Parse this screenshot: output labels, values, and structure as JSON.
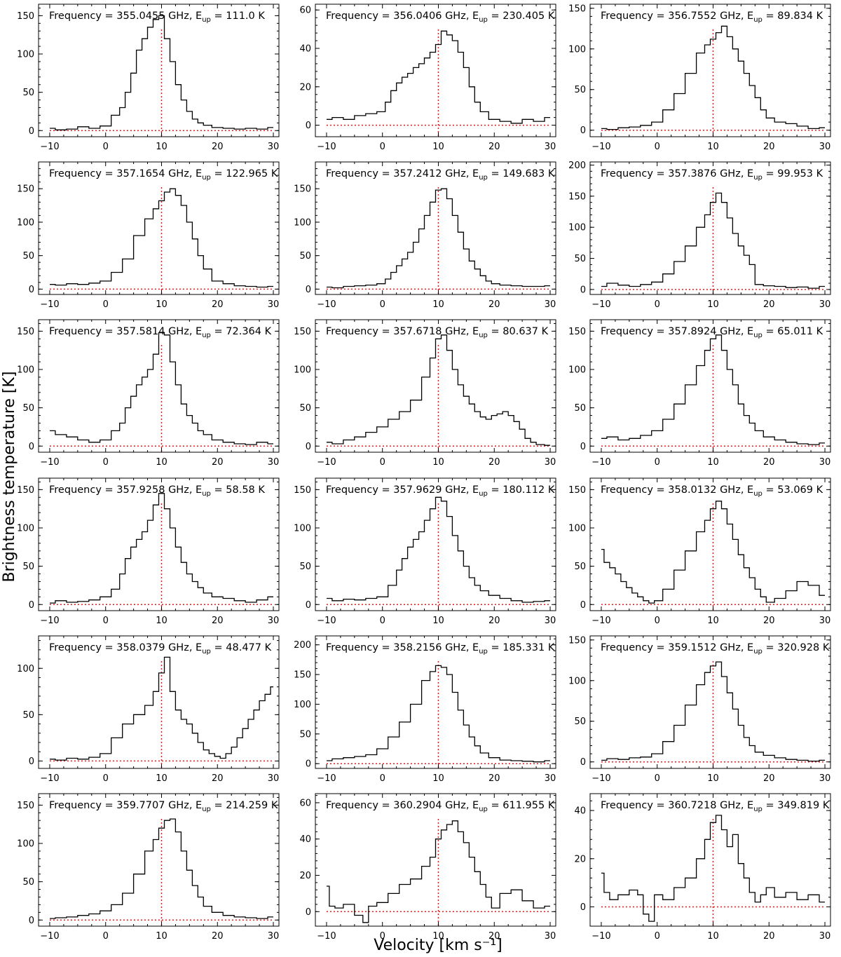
{
  "figure": {
    "xlabel": "Velocity [km s⁻¹]",
    "ylabel": "Brightness temperature [K]",
    "title_prefix": "Frequency = ",
    "title_freq_unit": " GHz, E",
    "title_sub": "up",
    "title_energy_prefix": " = ",
    "title_energy_unit": " K"
  },
  "colors": {
    "spectrum": "#000000",
    "reference": "#e31a1c",
    "frame": "#000000"
  },
  "chart_data": [
    {
      "type": "line",
      "frequency": "355.0455",
      "eup": "111.0",
      "v_sys": 10,
      "xlim": [
        -12,
        31
      ],
      "ylim": [
        -8,
        165
      ],
      "yticks": [
        0,
        50,
        100,
        150
      ],
      "xticks": [
        -10,
        0,
        10,
        20,
        30
      ],
      "x": [
        -10,
        -8,
        -6,
        -4,
        -2,
        0,
        2,
        3,
        4,
        5,
        6,
        7,
        8,
        9,
        10,
        11,
        12,
        13,
        14,
        15,
        16,
        17,
        18,
        20,
        22,
        24,
        26,
        28,
        30
      ],
      "y": [
        3,
        1,
        2,
        5,
        3,
        6,
        20,
        30,
        50,
        75,
        105,
        120,
        135,
        145,
        150,
        120,
        90,
        60,
        40,
        25,
        15,
        10,
        7,
        4,
        3,
        2,
        3,
        2,
        4
      ]
    },
    {
      "type": "line",
      "frequency": "356.0406",
      "eup": "230.405",
      "v_sys": 10,
      "xlim": [
        -12,
        31
      ],
      "ylim": [
        -6,
        63
      ],
      "yticks": [
        0,
        20,
        40,
        60
      ],
      "xticks": [
        -10,
        0,
        10,
        20,
        30
      ],
      "x": [
        -10,
        -8,
        -6,
        -4,
        -2,
        0,
        1,
        2,
        3,
        4,
        5,
        6,
        7,
        8,
        9,
        10,
        11,
        12,
        13,
        14,
        15,
        16,
        17,
        18,
        20,
        22,
        24,
        26,
        28,
        30
      ],
      "y": [
        3,
        4,
        3,
        5,
        6,
        7,
        12,
        18,
        22,
        25,
        27,
        30,
        32,
        35,
        38,
        42,
        49,
        47,
        44,
        38,
        30,
        20,
        12,
        7,
        3,
        2,
        1,
        3,
        2,
        4
      ]
    },
    {
      "type": "line",
      "frequency": "356.7552",
      "eup": "89.834",
      "v_sys": 10,
      "xlim": [
        -12,
        31
      ],
      "ylim": [
        -8,
        155
      ],
      "yticks": [
        0,
        50,
        100,
        150
      ],
      "xticks": [
        -10,
        0,
        10,
        20,
        30
      ],
      "x": [
        -10,
        -8,
        -6,
        -4,
        -2,
        0,
        2,
        4,
        6,
        8,
        9,
        10,
        11,
        12,
        13,
        14,
        15,
        16,
        17,
        18,
        19,
        20,
        22,
        24,
        26,
        28,
        30
      ],
      "y": [
        2,
        1,
        3,
        4,
        6,
        10,
        25,
        45,
        70,
        95,
        105,
        112,
        120,
        128,
        115,
        100,
        85,
        70,
        55,
        40,
        25,
        15,
        10,
        8,
        5,
        2,
        3
      ]
    },
    {
      "type": "line",
      "frequency": "357.1654",
      "eup": "122.965",
      "v_sys": 10,
      "xlim": [
        -12,
        31
      ],
      "ylim": [
        -8,
        190
      ],
      "yticks": [
        0,
        50,
        100,
        150
      ],
      "xticks": [
        -10,
        0,
        10,
        20,
        30
      ],
      "x": [
        -10,
        -8,
        -6,
        -4,
        -2,
        0,
        2,
        4,
        6,
        8,
        9,
        10,
        11,
        12,
        13,
        14,
        15,
        16,
        17,
        18,
        20,
        22,
        24,
        26,
        28,
        30
      ],
      "y": [
        7,
        6,
        8,
        7,
        9,
        12,
        25,
        45,
        80,
        105,
        120,
        132,
        145,
        150,
        140,
        125,
        100,
        75,
        50,
        30,
        12,
        8,
        5,
        4,
        3,
        4
      ]
    },
    {
      "type": "line",
      "frequency": "357.2412",
      "eup": "149.683",
      "v_sys": 10,
      "xlim": [
        -12,
        31
      ],
      "ylim": [
        -8,
        190
      ],
      "yticks": [
        0,
        50,
        100,
        150
      ],
      "xticks": [
        -10,
        0,
        10,
        20,
        30
      ],
      "x": [
        -10,
        -8,
        -6,
        -4,
        -2,
        0,
        1,
        2,
        3,
        4,
        5,
        6,
        7,
        8,
        9,
        10,
        11,
        12,
        13,
        14,
        15,
        16,
        17,
        18,
        19,
        20,
        22,
        24,
        26,
        28,
        30
      ],
      "y": [
        3,
        2,
        4,
        5,
        6,
        8,
        15,
        25,
        35,
        45,
        55,
        70,
        90,
        110,
        130,
        148,
        150,
        135,
        110,
        85,
        60,
        42,
        30,
        20,
        12,
        8,
        6,
        5,
        4,
        4,
        5
      ]
    },
    {
      "type": "line",
      "frequency": "357.3876",
      "eup": "99.953",
      "v_sys": 10,
      "xlim": [
        -12,
        31
      ],
      "ylim": [
        -8,
        205
      ],
      "yticks": [
        0,
        50,
        100,
        150,
        200
      ],
      "xticks": [
        -10,
        0,
        10,
        20,
        30
      ],
      "x": [
        -10,
        -8,
        -6,
        -4,
        -2,
        0,
        2,
        4,
        6,
        8,
        9,
        10,
        11,
        12,
        13,
        14,
        15,
        16,
        17,
        18,
        20,
        22,
        24,
        26,
        28,
        30
      ],
      "y": [
        5,
        10,
        7,
        5,
        8,
        12,
        25,
        45,
        70,
        100,
        120,
        140,
        155,
        140,
        115,
        90,
        70,
        55,
        40,
        8,
        6,
        5,
        3,
        4,
        2,
        5
      ]
    },
    {
      "type": "line",
      "frequency": "357.5814",
      "eup": "72.364",
      "v_sys": 10,
      "xlim": [
        -12,
        31
      ],
      "ylim": [
        -8,
        165
      ],
      "yticks": [
        0,
        50,
        100,
        150
      ],
      "xticks": [
        -10,
        0,
        10,
        20,
        30
      ],
      "x": [
        -10,
        -8,
        -6,
        -4,
        -2,
        0,
        2,
        3,
        4,
        5,
        6,
        7,
        8,
        9,
        10,
        11,
        12,
        13,
        14,
        15,
        16,
        17,
        18,
        20,
        22,
        24,
        26,
        28,
        30
      ],
      "y": [
        20,
        15,
        12,
        8,
        5,
        8,
        20,
        30,
        50,
        65,
        80,
        90,
        100,
        120,
        148,
        145,
        110,
        80,
        55,
        40,
        30,
        20,
        15,
        8,
        5,
        3,
        2,
        5,
        3
      ]
    },
    {
      "type": "line",
      "frequency": "357.6718",
      "eup": "80.637",
      "v_sys": 10,
      "xlim": [
        -12,
        31
      ],
      "ylim": [
        -8,
        165
      ],
      "yticks": [
        0,
        50,
        100,
        150
      ],
      "xticks": [
        -10,
        0,
        10,
        20,
        30
      ],
      "x": [
        -10,
        -8,
        -6,
        -4,
        -2,
        0,
        2,
        4,
        6,
        8,
        9,
        10,
        11,
        12,
        13,
        14,
        15,
        16,
        17,
        18,
        19,
        20,
        21,
        22,
        23,
        24,
        25,
        26,
        27,
        28,
        30
      ],
      "y": [
        5,
        3,
        8,
        12,
        18,
        25,
        35,
        45,
        60,
        90,
        115,
        140,
        145,
        125,
        100,
        80,
        65,
        55,
        45,
        38,
        35,
        40,
        42,
        45,
        40,
        32,
        22,
        10,
        5,
        2,
        1
      ]
    },
    {
      "type": "line",
      "frequency": "357.8924",
      "eup": "65.011",
      "v_sys": 10,
      "xlim": [
        -12,
        31
      ],
      "ylim": [
        -8,
        165
      ],
      "yticks": [
        0,
        50,
        100,
        150
      ],
      "xticks": [
        -10,
        0,
        10,
        20,
        30
      ],
      "x": [
        -10,
        -8,
        -6,
        -4,
        -2,
        0,
        2,
        4,
        6,
        8,
        9,
        10,
        11,
        12,
        13,
        14,
        15,
        16,
        17,
        18,
        20,
        22,
        24,
        26,
        28,
        30
      ],
      "y": [
        10,
        12,
        8,
        10,
        14,
        20,
        35,
        55,
        80,
        105,
        125,
        140,
        145,
        125,
        100,
        80,
        55,
        40,
        30,
        20,
        12,
        8,
        5,
        3,
        2,
        4
      ]
    },
    {
      "type": "line",
      "frequency": "357.9258",
      "eup": "58.58",
      "v_sys": 10,
      "xlim": [
        -12,
        31
      ],
      "ylim": [
        -8,
        165
      ],
      "yticks": [
        0,
        50,
        100,
        150
      ],
      "xticks": [
        -10,
        0,
        10,
        20,
        30
      ],
      "x": [
        -10,
        -8,
        -6,
        -4,
        -2,
        0,
        2,
        3,
        4,
        5,
        6,
        7,
        8,
        9,
        10,
        11,
        12,
        13,
        14,
        15,
        16,
        17,
        18,
        20,
        22,
        24,
        26,
        28,
        30
      ],
      "y": [
        2,
        5,
        3,
        4,
        6,
        10,
        20,
        40,
        60,
        75,
        85,
        95,
        110,
        130,
        145,
        125,
        100,
        75,
        55,
        40,
        30,
        22,
        15,
        10,
        8,
        5,
        3,
        6,
        10
      ]
    },
    {
      "type": "line",
      "frequency": "357.9629",
      "eup": "180.112",
      "v_sys": 10,
      "xlim": [
        -12,
        31
      ],
      "ylim": [
        -8,
        165
      ],
      "yticks": [
        0,
        50,
        100,
        150
      ],
      "xticks": [
        -10,
        0,
        10,
        20,
        30
      ],
      "x": [
        -10,
        -8,
        -6,
        -4,
        -2,
        0,
        2,
        3,
        4,
        5,
        6,
        7,
        8,
        9,
        10,
        11,
        12,
        13,
        14,
        15,
        16,
        17,
        18,
        20,
        22,
        24,
        26,
        28,
        30
      ],
      "y": [
        8,
        5,
        7,
        6,
        8,
        10,
        25,
        45,
        60,
        75,
        85,
        95,
        110,
        125,
        140,
        135,
        115,
        90,
        70,
        50,
        35,
        25,
        18,
        12,
        8,
        5,
        3,
        4,
        5
      ]
    },
    {
      "type": "line",
      "frequency": "358.0132",
      "eup": "53.069",
      "v_sys": 10,
      "xlim": [
        -12,
        31
      ],
      "ylim": [
        -8,
        165
      ],
      "yticks": [
        0,
        50,
        100,
        150
      ],
      "xticks": [
        -10,
        0,
        10,
        20,
        30
      ],
      "x": [
        -10,
        -9,
        -8,
        -7,
        -6,
        -5,
        -4,
        -3,
        -2,
        -1,
        0,
        2,
        4,
        6,
        8,
        9,
        10,
        11,
        12,
        13,
        14,
        15,
        16,
        17,
        18,
        19,
        20,
        22,
        24,
        26,
        28,
        30
      ],
      "y": [
        72,
        55,
        48,
        40,
        30,
        22,
        15,
        10,
        5,
        2,
        5,
        20,
        45,
        70,
        95,
        110,
        125,
        135,
        125,
        105,
        85,
        65,
        48,
        35,
        20,
        10,
        3,
        8,
        18,
        30,
        25,
        12
      ]
    },
    {
      "type": "line",
      "frequency": "358.0379",
      "eup": "48.477",
      "v_sys": 10,
      "xlim": [
        -12,
        31
      ],
      "ylim": [
        -8,
        135
      ],
      "yticks": [
        0,
        50,
        100
      ],
      "xticks": [
        -10,
        0,
        10,
        20,
        30
      ],
      "x": [
        -10,
        -8,
        -6,
        -4,
        -2,
        0,
        2,
        4,
        6,
        8,
        9,
        10,
        11,
        12,
        13,
        14,
        15,
        16,
        17,
        18,
        19,
        20,
        21,
        22,
        23,
        24,
        25,
        26,
        27,
        28,
        29,
        30
      ],
      "y": [
        2,
        1,
        3,
        2,
        4,
        8,
        25,
        40,
        50,
        60,
        75,
        95,
        112,
        75,
        55,
        45,
        40,
        30,
        20,
        12,
        8,
        5,
        3,
        8,
        15,
        25,
        35,
        45,
        55,
        65,
        72,
        80
      ]
    },
    {
      "type": "line",
      "frequency": "358.2156",
      "eup": "185.331",
      "v_sys": 10,
      "xlim": [
        -12,
        31
      ],
      "ylim": [
        -8,
        215
      ],
      "yticks": [
        0,
        50,
        100,
        150,
        200
      ],
      "xticks": [
        -10,
        0,
        10,
        20,
        30
      ],
      "x": [
        -10,
        -8,
        -6,
        -4,
        -2,
        0,
        2,
        4,
        6,
        8,
        9,
        10,
        11,
        12,
        13,
        14,
        15,
        16,
        17,
        18,
        20,
        22,
        24,
        26,
        28,
        30
      ],
      "y": [
        5,
        8,
        10,
        12,
        15,
        25,
        45,
        70,
        100,
        140,
        155,
        165,
        162,
        150,
        120,
        90,
        65,
        45,
        30,
        18,
        10,
        6,
        5,
        4,
        3,
        5
      ]
    },
    {
      "type": "line",
      "frequency": "359.1512",
      "eup": "320.928",
      "v_sys": 10,
      "xlim": [
        -12,
        31
      ],
      "ylim": [
        -8,
        155
      ],
      "yticks": [
        0,
        50,
        100,
        150
      ],
      "xticks": [
        -10,
        0,
        10,
        20,
        30
      ],
      "x": [
        -10,
        -8,
        -6,
        -4,
        -2,
        0,
        2,
        4,
        6,
        8,
        9,
        10,
        11,
        12,
        13,
        14,
        15,
        16,
        17,
        18,
        20,
        22,
        24,
        26,
        28,
        30
      ],
      "y": [
        2,
        4,
        3,
        5,
        6,
        10,
        25,
        45,
        70,
        95,
        110,
        118,
        123,
        105,
        85,
        65,
        45,
        30,
        20,
        12,
        8,
        5,
        3,
        2,
        1,
        2
      ]
    },
    {
      "type": "line",
      "frequency": "359.7707",
      "eup": "214.259",
      "v_sys": 10,
      "xlim": [
        -12,
        31
      ],
      "ylim": [
        -8,
        165
      ],
      "yticks": [
        0,
        50,
        100,
        150
      ],
      "xticks": [
        -10,
        0,
        10,
        20,
        30
      ],
      "x": [
        -10,
        -8,
        -6,
        -4,
        -2,
        0,
        2,
        4,
        6,
        8,
        9,
        10,
        11,
        12,
        13,
        14,
        15,
        16,
        17,
        18,
        20,
        22,
        24,
        26,
        28,
        30
      ],
      "y": [
        2,
        3,
        4,
        6,
        8,
        12,
        20,
        35,
        60,
        90,
        105,
        120,
        130,
        132,
        115,
        90,
        65,
        45,
        30,
        18,
        10,
        6,
        4,
        3,
        2,
        4
      ]
    },
    {
      "type": "line",
      "frequency": "360.2904",
      "eup": "611.955",
      "v_sys": 10,
      "xlim": [
        -12,
        31
      ],
      "ylim": [
        -8,
        65
      ],
      "yticks": [
        0,
        20,
        40,
        60
      ],
      "xticks": [
        -10,
        0,
        10,
        20,
        30
      ],
      "x": [
        -10,
        -9,
        -8,
        -6,
        -4,
        -3,
        -2,
        0,
        2,
        4,
        6,
        8,
        9,
        10,
        11,
        12,
        13,
        14,
        15,
        16,
        17,
        18,
        19,
        20,
        22,
        24,
        26,
        28,
        30
      ],
      "y": [
        14,
        3,
        2,
        4,
        -2,
        -6,
        3,
        5,
        10,
        15,
        18,
        25,
        30,
        40,
        45,
        48,
        50,
        44,
        38,
        30,
        22,
        15,
        8,
        2,
        10,
        12,
        6,
        2,
        3
      ]
    },
    {
      "type": "line",
      "frequency": "360.7218",
      "eup": "349.819",
      "v_sys": 10,
      "xlim": [
        -12,
        31
      ],
      "ylim": [
        -8,
        47
      ],
      "yticks": [
        0,
        20,
        40
      ],
      "xticks": [
        -10,
        0,
        10,
        20,
        30
      ],
      "x": [
        -10,
        -9,
        -8,
        -6,
        -4,
        -3,
        -2,
        -1,
        0,
        2,
        4,
        6,
        8,
        9,
        10,
        11,
        12,
        13,
        14,
        15,
        16,
        17,
        18,
        19,
        20,
        22,
        24,
        26,
        28,
        30
      ],
      "y": [
        14,
        6,
        3,
        5,
        7,
        5,
        -3,
        -6,
        5,
        3,
        8,
        12,
        20,
        28,
        35,
        38,
        32,
        25,
        30,
        18,
        12,
        6,
        2,
        5,
        8,
        4,
        6,
        3,
        5,
        2
      ]
    }
  ]
}
